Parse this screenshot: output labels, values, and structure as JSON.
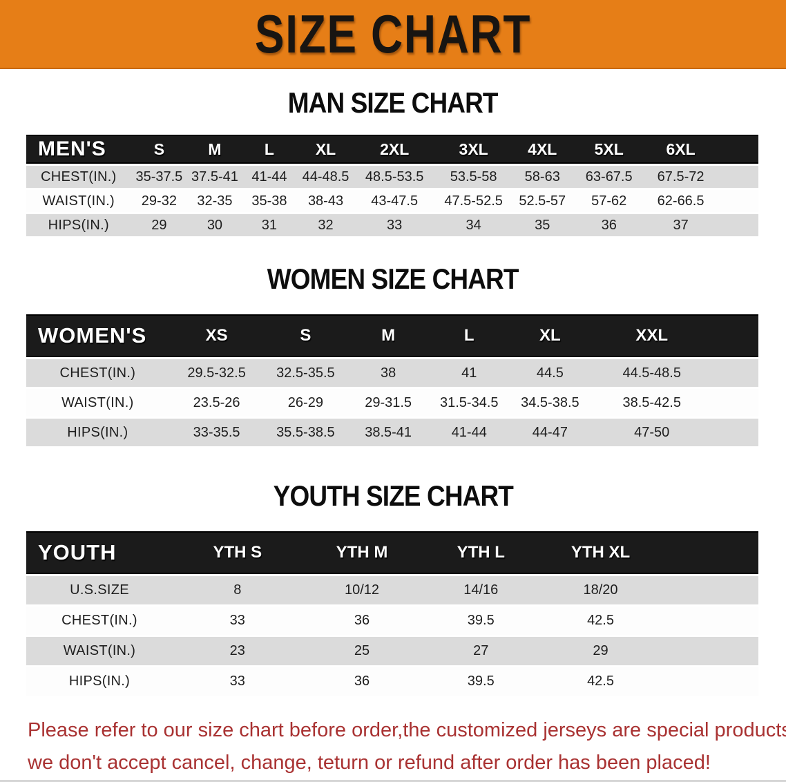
{
  "banner": {
    "title": "SIZE CHART",
    "bg_color": "#e67e17",
    "text_color": "#181512"
  },
  "men": {
    "heading": "MAN SIZE CHART",
    "label": "MEN'S",
    "sizes": [
      "S",
      "M",
      "L",
      "XL",
      "2XL",
      "3XL",
      "4XL",
      "5XL",
      "6XL"
    ],
    "rows": [
      {
        "label": "CHEST(IN.)",
        "values": [
          "35-37.5",
          "37.5-41",
          "41-44",
          "44-48.5",
          "48.5-53.5",
          "53.5-58",
          "58-63",
          "63-67.5",
          "67.5-72"
        ]
      },
      {
        "label": "WAIST(IN.)",
        "values": [
          "29-32",
          "32-35",
          "35-38",
          "38-43",
          "43-47.5",
          "47.5-52.5",
          "52.5-57",
          "57-62",
          "62-66.5"
        ]
      },
      {
        "label": "HIPS(IN.)",
        "values": [
          "29",
          "30",
          "31",
          "32",
          "33",
          "34",
          "35",
          "36",
          "37"
        ]
      }
    ]
  },
  "women": {
    "heading": "WOMEN SIZE CHART",
    "label": "WOMEN'S",
    "sizes": [
      "XS",
      "S",
      "M",
      "L",
      "XL",
      "XXL"
    ],
    "rows": [
      {
        "label": "CHEST(IN.)",
        "values": [
          "29.5-32.5",
          "32.5-35.5",
          "38",
          "41",
          "44.5",
          "44.5-48.5"
        ]
      },
      {
        "label": "WAIST(IN.)",
        "values": [
          "23.5-26",
          "26-29",
          "29-31.5",
          "31.5-34.5",
          "34.5-38.5",
          "38.5-42.5"
        ]
      },
      {
        "label": "HIPS(IN.)",
        "values": [
          "33-35.5",
          "35.5-38.5",
          "38.5-41",
          "41-44",
          "44-47",
          "47-50"
        ]
      }
    ]
  },
  "youth": {
    "heading": "YOUTH SIZE CHART",
    "label": "YOUTH",
    "sizes": [
      "YTH S",
      "YTH M",
      "YTH L",
      "YTH XL"
    ],
    "rows": [
      {
        "label": "U.S.SIZE",
        "values": [
          "8",
          "10/12",
          "14/16",
          "18/20"
        ]
      },
      {
        "label": "CHEST(IN.)",
        "values": [
          "33",
          "36",
          "39.5",
          "42.5"
        ]
      },
      {
        "label": "WAIST(IN.)",
        "values": [
          "23",
          "25",
          "27",
          "29"
        ]
      },
      {
        "label": "HIPS(IN.)",
        "values": [
          "33",
          "36",
          "39.5",
          "42.5"
        ]
      }
    ]
  },
  "disclaimer": {
    "line1": "Please refer to our size chart before order,the customized jerseys are special products,",
    "line2": "we don't accept cancel, change, teturn or refund after order has been placed!",
    "color": "#a93232"
  },
  "colors": {
    "header_bar": "#1b1b1b",
    "row_shaded": "#dbdbdb",
    "row_plain": "#fdfdfd"
  }
}
